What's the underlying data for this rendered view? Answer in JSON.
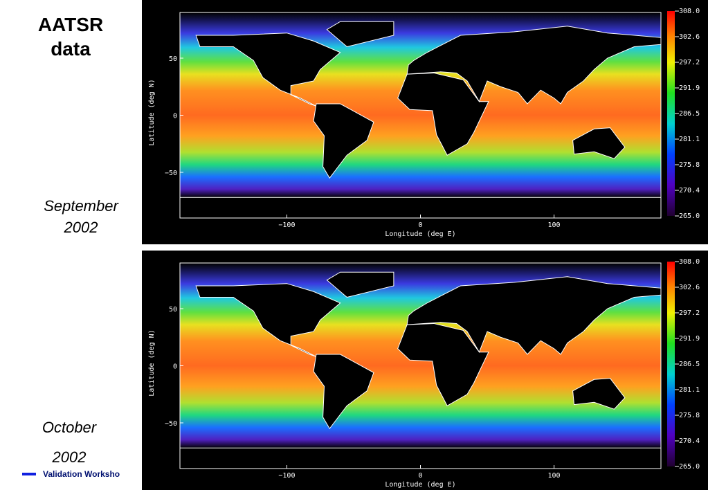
{
  "title": [
    "AATSR",
    "data"
  ],
  "panels": [
    {
      "caption": [
        "September",
        "2002"
      ],
      "ylabel": "Latitude (deg N)",
      "xlabel": "Longitude (deg E)",
      "xticks": [
        "−100",
        "0",
        "100"
      ],
      "yticks": [
        "50",
        "0",
        "−50"
      ],
      "colorbar": [
        "308.0",
        "302.6",
        "297.2",
        "291.9",
        "286.5",
        "281.1",
        "275.8",
        "270.4",
        "265.0"
      ]
    },
    {
      "caption": [
        "October",
        "2002"
      ],
      "ylabel": "Latitude (deg N)",
      "xlabel": "Longitude (deg E)",
      "xticks": [
        "−100",
        "0",
        "100"
      ],
      "yticks": [
        "50",
        "0",
        "−50"
      ],
      "colorbar": [
        "308.0",
        "302.6",
        "297.2",
        "291.9",
        "286.5",
        "281.1",
        "275.8",
        "270.4",
        "265.0"
      ]
    }
  ],
  "footer": "Validation Worksho"
}
